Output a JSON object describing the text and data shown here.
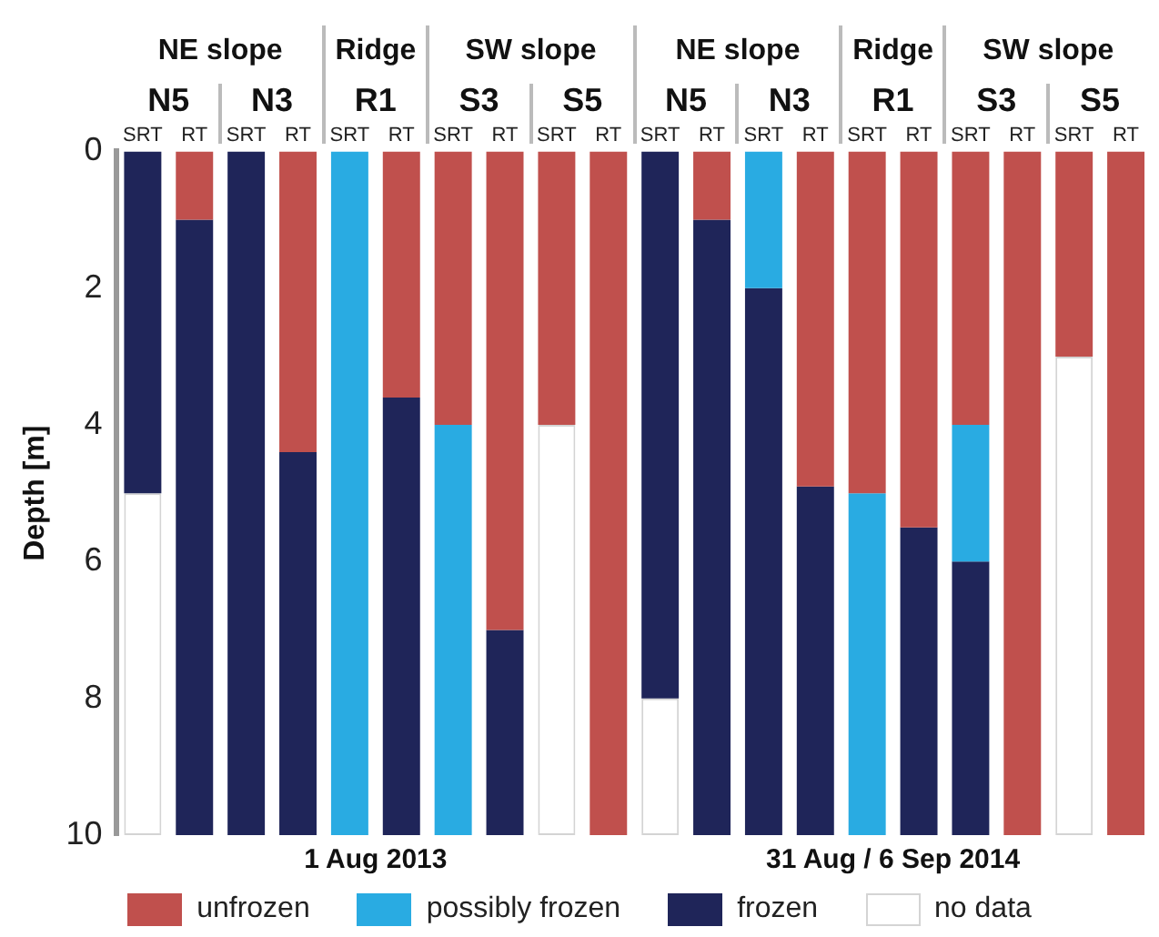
{
  "chart_data": {
    "type": "bar",
    "stacked": true,
    "categories": [
      "SRT",
      "RT",
      "SRT",
      "RT",
      "SRT",
      "RT",
      "SRT",
      "RT",
      "SRT",
      "RT",
      "SRT",
      "RT",
      "SRT",
      "RT",
      "SRT",
      "RT",
      "SRT",
      "RT",
      "SRT",
      "RT"
    ],
    "series": [
      {
        "name": "unfrozen",
        "color": "#c0504d",
        "values": [
          0,
          1,
          0,
          4.4,
          0,
          3.6,
          4,
          7,
          4,
          10,
          0,
          1,
          0,
          4.9,
          5,
          5.5,
          4,
          10,
          3,
          10
        ]
      },
      {
        "name": "possibly frozen",
        "color": "#29abe2",
        "values": [
          0,
          0,
          0,
          0,
          10,
          0,
          6,
          0,
          0,
          0,
          0,
          0,
          2,
          0,
          5,
          0,
          2,
          0,
          0,
          0
        ]
      },
      {
        "name": "frozen",
        "color": "#1f2559",
        "values": [
          5,
          9,
          10,
          5.6,
          0,
          6.4,
          0,
          3,
          0,
          0,
          8,
          9,
          8,
          5.1,
          0,
          4.5,
          4,
          0,
          0,
          0
        ]
      },
      {
        "name": "no data",
        "color": "#ffffff",
        "values": [
          5,
          0,
          0,
          0,
          0,
          0,
          0,
          0,
          6,
          0,
          2,
          0,
          0,
          0,
          0,
          0,
          0,
          0,
          7,
          0
        ]
      }
    ],
    "ylabel": "Depth [m]",
    "ylim": [
      10,
      0
    ],
    "yticks": [
      0,
      2,
      4,
      6,
      8,
      10
    ],
    "legend": "bottom",
    "annotations": [
      "NE slope",
      "Ridge",
      "SW slope",
      "NE slope",
      "Ridge",
      "SW slope",
      "N5",
      "N3",
      "R1",
      "S3",
      "S5",
      "N5",
      "N3",
      "R1",
      "S3",
      "S5",
      "1 Aug 2013",
      "31 Aug / 6 Sep 2014"
    ]
  }
}
